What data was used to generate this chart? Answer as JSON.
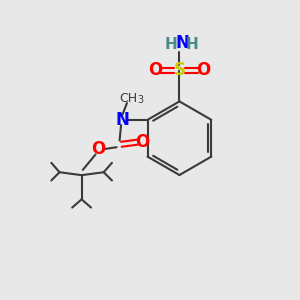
{
  "background_color": "#e8e8e8",
  "bond_color": "#3a3a3a",
  "colors": {
    "N": "#0000ff",
    "O": "#ff0000",
    "S": "#cccc00",
    "H": "#4a8a8a",
    "C": "#3a3a3a"
  },
  "figsize": [
    3.0,
    3.0
  ],
  "dpi": 100
}
